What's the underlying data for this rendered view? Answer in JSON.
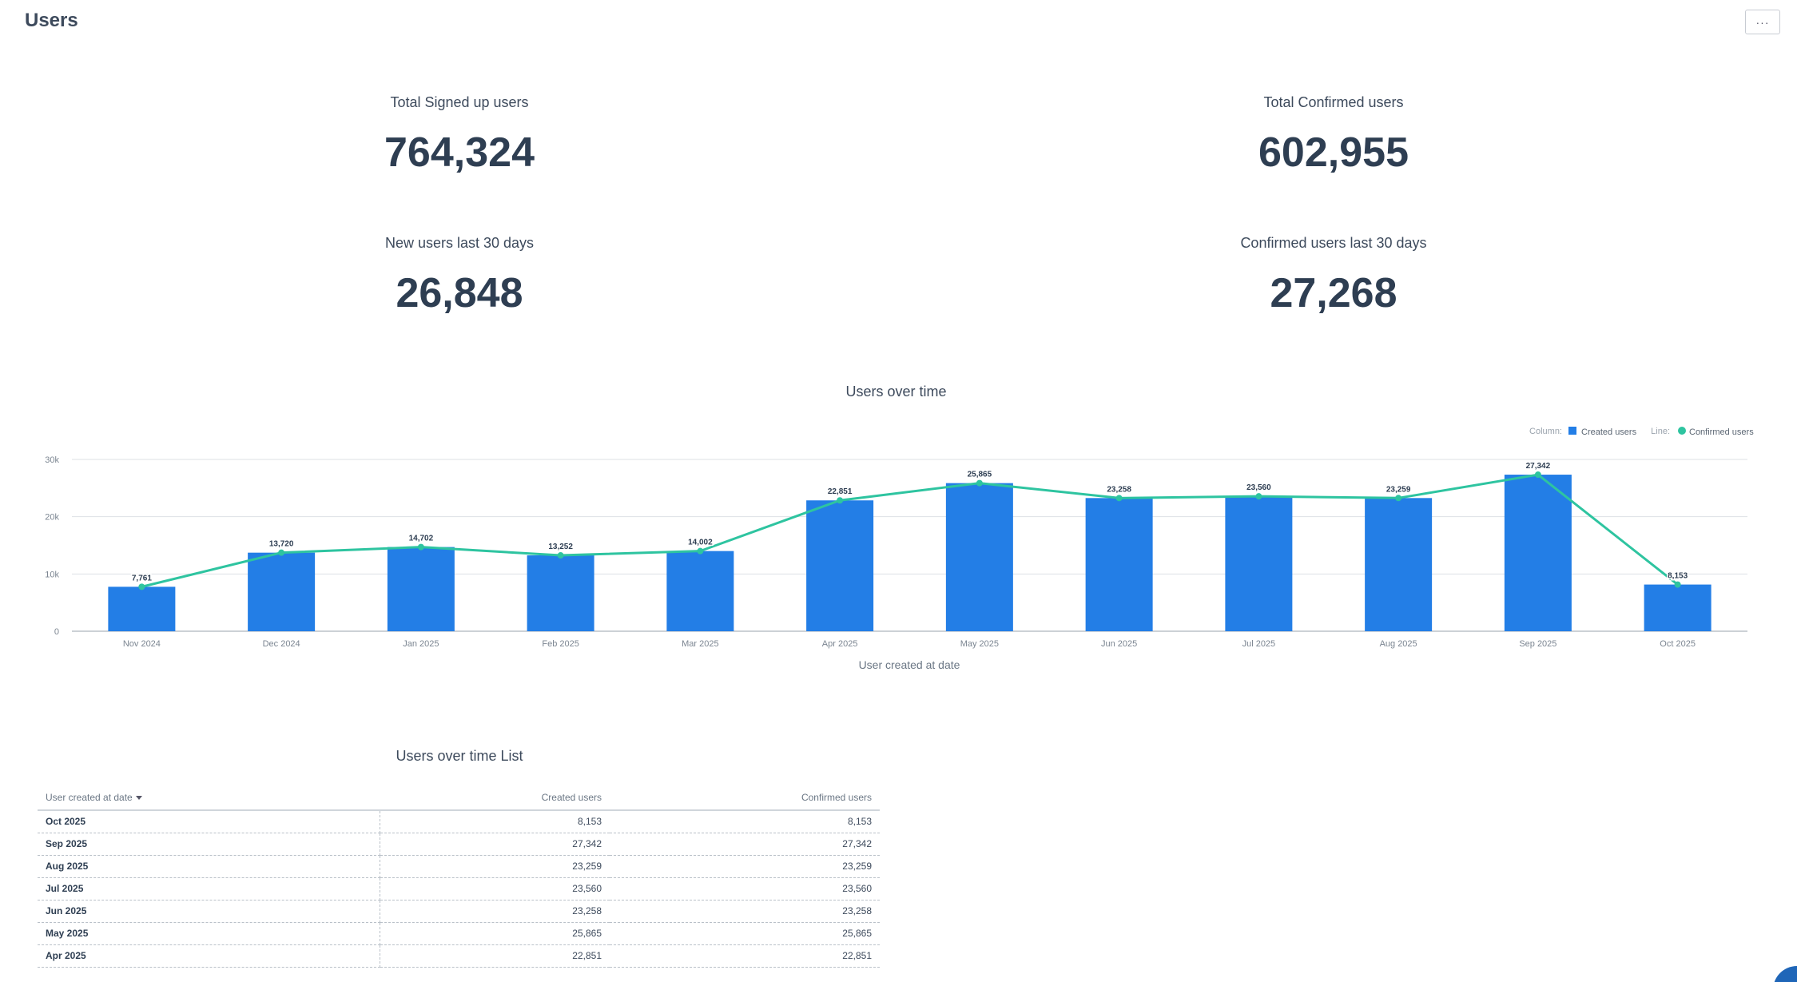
{
  "page": {
    "title": "Users",
    "more_label": "···"
  },
  "kpis": {
    "total_signed_up": {
      "label": "Total Signed up users",
      "value": "764,324"
    },
    "total_confirmed": {
      "label": "Total Confirmed users",
      "value": "602,955"
    },
    "new_last_30": {
      "label": "New users last 30 days",
      "value": "26,848"
    },
    "confirmed_last_30": {
      "label": "Confirmed users last 30 days",
      "value": "27,268"
    }
  },
  "chart": {
    "title": "Users over time",
    "legend": {
      "column_prefix": "Column:",
      "column_label": "Created users",
      "line_prefix": "Line:",
      "line_label": "Confirmed users"
    }
  },
  "chart_data": {
    "type": "bar",
    "title": "Users over time",
    "xlabel": "User created at date",
    "ylabel": "",
    "categories": [
      "Nov 2024",
      "Dec 2024",
      "Jan 2025",
      "Feb 2025",
      "Mar 2025",
      "Apr 2025",
      "May 2025",
      "Jun 2025",
      "Jul 2025",
      "Aug 2025",
      "Sep 2025",
      "Oct 2025"
    ],
    "series": [
      {
        "name": "Created users",
        "type": "bar",
        "color": "#237ee6",
        "values": [
          7761,
          13720,
          14702,
          13252,
          14002,
          22851,
          25865,
          23258,
          23560,
          23259,
          27342,
          8153
        ]
      },
      {
        "name": "Confirmed users",
        "type": "line",
        "color": "#2ec4a0",
        "values": [
          7761,
          13720,
          14702,
          13252,
          14002,
          22851,
          25865,
          23258,
          23560,
          23259,
          27342,
          8153
        ]
      }
    ],
    "data_labels": [
      "7,761",
      "13,720",
      "14,702",
      "13,252",
      "14,002",
      "22,851",
      "25,865",
      "23,258",
      "23,560",
      "23,259",
      "27,342",
      "8,153"
    ],
    "ylim": [
      0,
      30000
    ],
    "yticks": [
      0,
      10000,
      20000,
      30000
    ],
    "ytick_labels": [
      "0",
      "10k",
      "20k",
      "30k"
    ],
    "grid": true,
    "legend_position": "top-right"
  },
  "table": {
    "title": "Users over time List",
    "headers": [
      "User created at date",
      "Created users",
      "Confirmed users"
    ],
    "rows": [
      [
        "Oct 2025",
        "8,153",
        "8,153"
      ],
      [
        "Sep 2025",
        "27,342",
        "27,342"
      ],
      [
        "Aug 2025",
        "23,259",
        "23,259"
      ],
      [
        "Jul 2025",
        "23,560",
        "23,560"
      ],
      [
        "Jun 2025",
        "23,258",
        "23,258"
      ],
      [
        "May 2025",
        "25,865",
        "25,865"
      ],
      [
        "Apr 2025",
        "22,851",
        "22,851"
      ]
    ]
  }
}
